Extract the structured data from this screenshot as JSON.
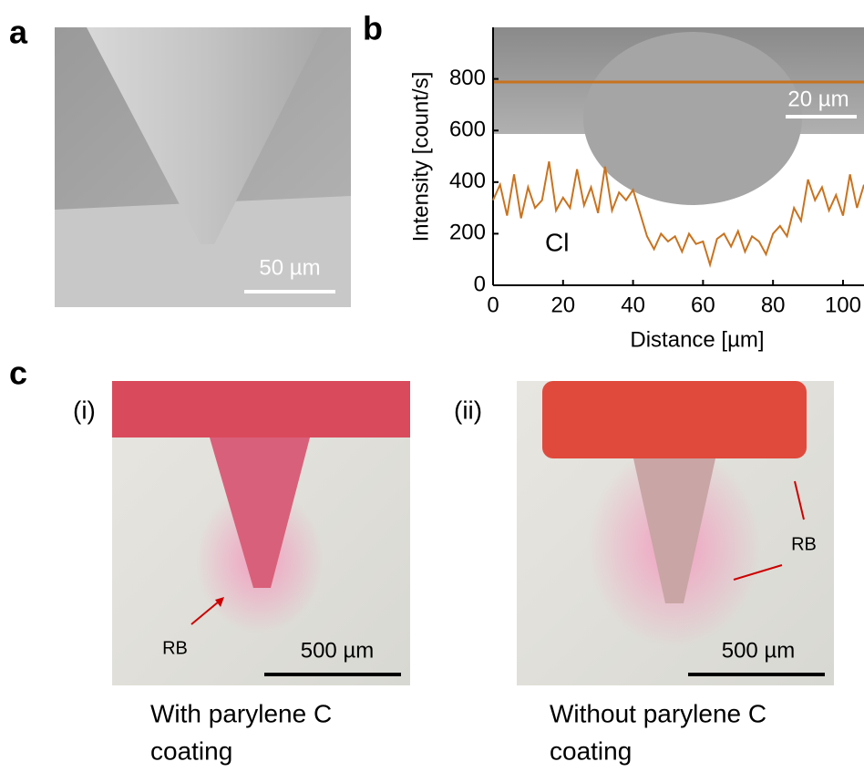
{
  "panels": {
    "a": {
      "label": "a",
      "scale_bar": "50 µm"
    },
    "b": {
      "label": "b",
      "inset_scale_bar": "20 µm",
      "annotation": "Cl"
    },
    "c": {
      "label": "c",
      "i": {
        "label": "(i)",
        "arrow_label": "RB",
        "scale_bar": "500 µm",
        "caption": [
          "With parylene C",
          "coating"
        ]
      },
      "ii": {
        "label": "(ii)",
        "arrow_label": "RB",
        "scale_bar": "500 µm",
        "caption": [
          "Without parylene C",
          "coating"
        ]
      }
    }
  },
  "chart_data": {
    "type": "line",
    "x_label": "Distance [µm]",
    "y_label": "Intensity [count/s]",
    "x": [
      0,
      2,
      4,
      6,
      8,
      10,
      12,
      14,
      16,
      18,
      20,
      22,
      24,
      26,
      28,
      30,
      32,
      34,
      36,
      38,
      40,
      42,
      44,
      46,
      48,
      50,
      52,
      54,
      56,
      58,
      60,
      62,
      64,
      66,
      68,
      70,
      72,
      74,
      76,
      78,
      80,
      82,
      84,
      86,
      88,
      90,
      92,
      94,
      96,
      98,
      100,
      102,
      104,
      106
    ],
    "series": [
      {
        "name": "Cl",
        "color": "#c8731f",
        "values": [
          330,
          390,
          270,
          430,
          260,
          380,
          300,
          330,
          480,
          290,
          340,
          300,
          450,
          310,
          380,
          280,
          460,
          290,
          360,
          330,
          370,
          280,
          190,
          140,
          200,
          170,
          190,
          130,
          200,
          160,
          170,
          80,
          180,
          200,
          150,
          210,
          130,
          190,
          170,
          120,
          200,
          230,
          190,
          300,
          250,
          410,
          330,
          380,
          290,
          350,
          270,
          430,
          300,
          390
        ]
      }
    ],
    "xlim": [
      0,
      106
    ],
    "ylim": [
      0,
      1000
    ],
    "xticks": [
      0,
      20,
      40,
      60,
      80,
      100
    ],
    "yticks": [
      0,
      200,
      400,
      600,
      800
    ]
  }
}
